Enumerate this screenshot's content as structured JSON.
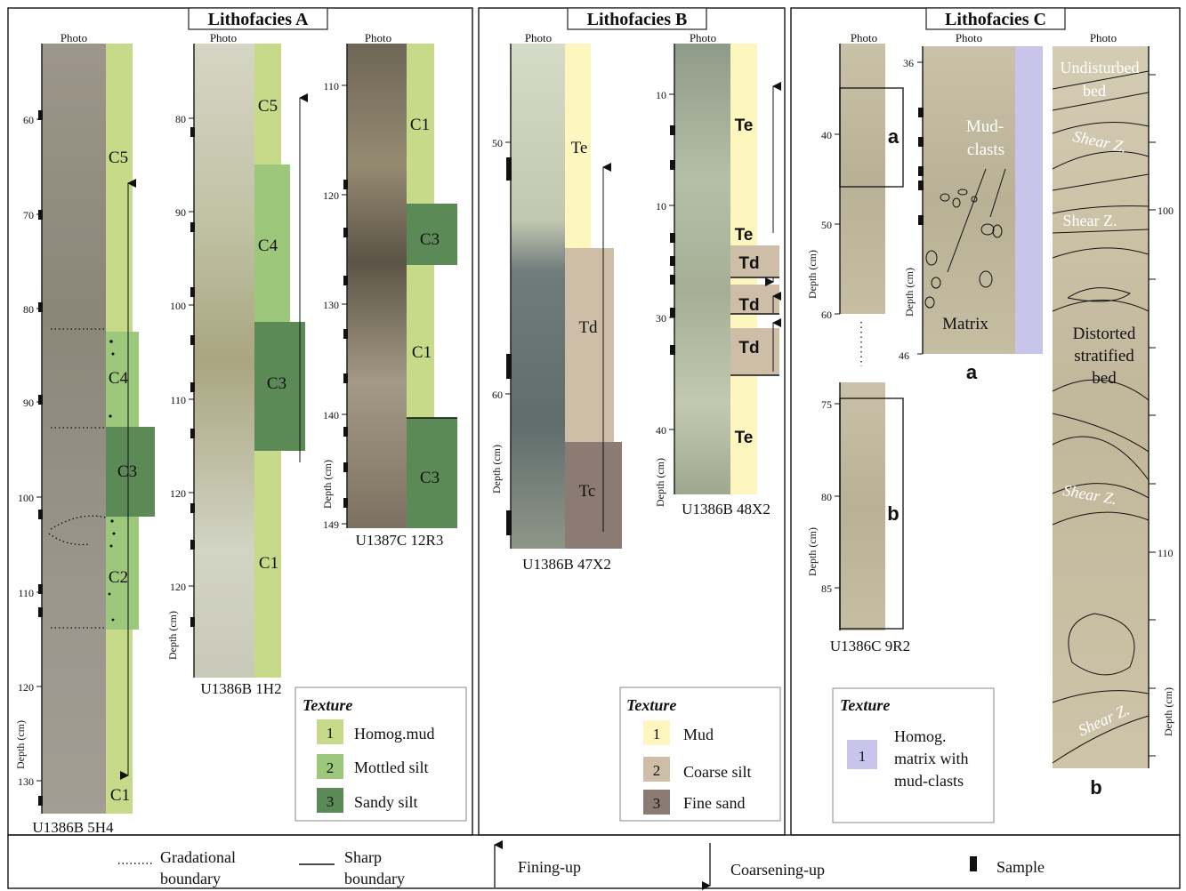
{
  "panels": {
    "a_title": "Lithofacies A",
    "b_title": "Lithofacies B",
    "c_title": "Lithofacies C"
  },
  "common": {
    "photo": "Photo",
    "depth_label": "Depth (cm)",
    "texture_title": "Texture"
  },
  "cores": {
    "a1": {
      "name": "U1386B 5H4",
      "ticks": [
        "60",
        "70",
        "80",
        "90",
        "100",
        "110",
        "120",
        "130"
      ],
      "units": [
        "C5",
        "C4",
        "C3",
        "C2",
        "C1"
      ]
    },
    "a2": {
      "name": "U1386B 1H2",
      "ticks": [
        "80",
        "90",
        "100",
        "110",
        "120",
        "120"
      ],
      "units": [
        "C5",
        "C4",
        "C3",
        "C1"
      ]
    },
    "a3": {
      "name": "U1387C 12R3",
      "ticks": [
        "110",
        "120",
        "130",
        "140",
        "149"
      ],
      "units": [
        "C1",
        "C3",
        "C1",
        "C3"
      ]
    },
    "b1": {
      "name": "U1386B 47X2",
      "ticks": [
        "50",
        "60"
      ],
      "units": [
        "Te",
        "Td",
        "Tc"
      ]
    },
    "b2": {
      "name": "U1386B 48X2",
      "ticks": [
        "10",
        "10",
        "30",
        "40"
      ],
      "units": [
        "Te",
        "Te",
        "Td",
        "Td",
        "Td",
        "Te"
      ]
    },
    "c1": {
      "name": "U1386C 9R2",
      "ticks_top": [
        "40",
        "50",
        "60"
      ],
      "ticks_bottom": [
        "75",
        "80",
        "85"
      ],
      "box_a": "a",
      "box_b": "b"
    },
    "c2": {
      "ticks": [
        "36",
        "46"
      ],
      "labels": [
        "Mud-",
        "clasts",
        "Matrix"
      ],
      "caption": "a"
    },
    "c3": {
      "ticks": [
        "100",
        "110"
      ],
      "labels": [
        "Undisturbed",
        "bed",
        "Shear Z.",
        "Shear Z.",
        "Distorted",
        "stratified",
        "bed",
        "Shear Z.",
        "Shear Z."
      ],
      "caption": "b"
    }
  },
  "legend_a": {
    "items": [
      {
        "num": "1",
        "label": "Homog.mud"
      },
      {
        "num": "2",
        "label": "Mottled silt"
      },
      {
        "num": "3",
        "label": "Sandy silt"
      }
    ]
  },
  "legend_b": {
    "items": [
      {
        "num": "1",
        "label": "Mud"
      },
      {
        "num": "2",
        "label": "Coarse silt"
      },
      {
        "num": "3",
        "label": "Fine  sand"
      }
    ]
  },
  "legend_c": {
    "num": "1",
    "lines": [
      "Homog.",
      "matrix with",
      "mud-clasts"
    ]
  },
  "bottom_legend": {
    "gradational": [
      "Gradational",
      "boundary"
    ],
    "sharp": [
      "Sharp",
      "boundary"
    ],
    "fining": "Fining-up",
    "coarsening": "Coarsening-up",
    "sample": "Sample"
  },
  "colors": {
    "c1_mud": "#c6da8a",
    "c2_mottled": "#9dc77a",
    "c3_sandy": "#5c8a57",
    "te_mud": "#fdf6bf",
    "td_silt": "#cfbea7",
    "tc_sand": "#8b7b73",
    "c_matrix": "#c8c4ea"
  }
}
